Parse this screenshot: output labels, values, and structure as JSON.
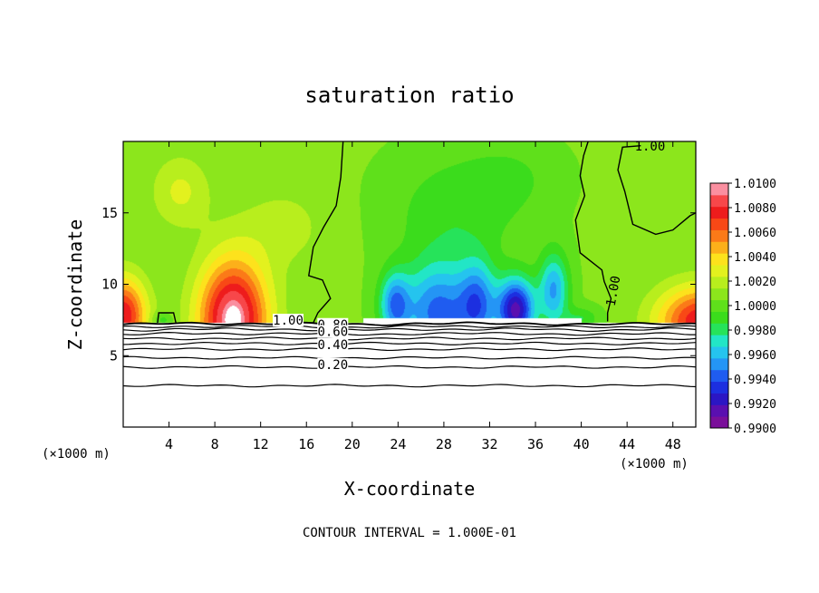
{
  "chart_data": {
    "type": "heatmap",
    "title": "saturation ratio",
    "xlabel": "X-coordinate",
    "ylabel": "Z-coordinate",
    "x_unit_left": "(×1000 m)",
    "x_unit_right": "(×1000 m)",
    "footnote": "CONTOUR INTERVAL = 1.000E-01",
    "xlim": [
      0,
      50
    ],
    "ylim": [
      0,
      20
    ],
    "x_ticks": [
      4,
      8,
      12,
      16,
      20,
      24,
      28,
      32,
      36,
      40,
      44,
      48
    ],
    "y_ticks": [
      5,
      10,
      15
    ],
    "colorbar": {
      "min": 0.99,
      "max": 1.01,
      "labels": [
        "1.0100",
        "1.0080",
        "1.0060",
        "1.0040",
        "1.0020",
        "1.0000",
        "0.9980",
        "0.9960",
        "0.9940",
        "0.9920",
        "0.9900"
      ],
      "colors": [
        "#7a0f9a",
        "#5a0fb0",
        "#2b16c4",
        "#1c2fe0",
        "#1f5cf0",
        "#2495f5",
        "#25c4ee",
        "#22e6c6",
        "#26e35a",
        "#3bdc1c",
        "#5fe01b",
        "#8ce61c",
        "#b8ee1d",
        "#e3f11e",
        "#fde21c",
        "#fcb01a",
        "#fb7a18",
        "#f84816",
        "#ee1c1c",
        "#f7474a",
        "#fa8fa0"
      ]
    },
    "contour_levels": [
      0.1,
      0.2,
      0.3,
      0.4,
      0.5,
      0.6,
      0.7,
      0.8,
      0.9,
      1.0
    ],
    "contour_labels": [
      {
        "text": "1.00",
        "x": 46.0,
        "y": 19.5
      },
      {
        "text": "1.00",
        "x": 43.0,
        "y": 9.5
      },
      {
        "text": "1.00",
        "x": 14.4,
        "y": 7.3
      },
      {
        "text": "0.80",
        "x": 18.3,
        "y": 7.0
      },
      {
        "text": "0.60",
        "x": 18.3,
        "y": 6.5
      },
      {
        "text": "0.40",
        "x": 18.3,
        "y": 5.6
      },
      {
        "text": "0.20",
        "x": 18.3,
        "y": 4.2
      }
    ],
    "features": [
      {
        "kind": "max",
        "x": 9.5,
        "z": 8.5,
        "value": 1.009
      },
      {
        "kind": "max",
        "x": 0.8,
        "z": 8.4,
        "value": 1.007
      },
      {
        "kind": "max",
        "x": 49.5,
        "z": 8.0,
        "value": 1.007
      },
      {
        "kind": "max",
        "x": 5.0,
        "z": 15.5,
        "value": 1.0025
      },
      {
        "kind": "min",
        "x": 28.0,
        "z": 9.5,
        "value": 0.9925
      },
      {
        "kind": "min",
        "x": 34.5,
        "z": 9.0,
        "value": 0.9905
      },
      {
        "kind": "min",
        "x": 24.0,
        "z": 10.0,
        "value": 0.9965
      }
    ],
    "cloud_base_z": 7.3
  }
}
